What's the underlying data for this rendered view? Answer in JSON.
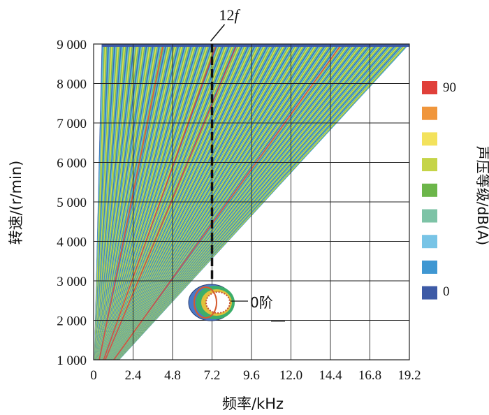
{
  "chart_data": {
    "type": "heatmap",
    "xlabel": "频率/kHz",
    "ylabel": "转速/(r/min)",
    "colorbar_label": "声压等级/dB(A)",
    "x_ticks": [
      "0",
      "2.4",
      "4.8",
      "7.2",
      "9.6",
      "12.0",
      "14.4",
      "16.8",
      "19.2"
    ],
    "x_tick_values": [
      0,
      2.4,
      4.8,
      7.2,
      9.6,
      12.0,
      14.4,
      16.8,
      19.2
    ],
    "y_ticks": [
      "1 000",
      "2 000",
      "3 000",
      "4 000",
      "5 000",
      "6 000",
      "7 000",
      "8 000",
      "9 000"
    ],
    "y_tick_values": [
      1000,
      2000,
      3000,
      4000,
      5000,
      6000,
      7000,
      8000,
      9000
    ],
    "xlim": [
      0,
      19.2
    ],
    "ylim": [
      1000,
      9000
    ],
    "grid": true,
    "colorbar": {
      "labels": [
        "90",
        "0"
      ],
      "colors": [
        "#e0403a",
        "#f0963c",
        "#f3e25c",
        "#c5d448",
        "#6cb64a",
        "#7dc3a6",
        "#78c4e6",
        "#3f97d2",
        "#3d5aa6"
      ]
    },
    "order_lines": {
      "count": 48,
      "max_frequency_at_9000": 19.2,
      "band_colors": [
        "#3d5aa6",
        "#3f97d2",
        "#78c4e6",
        "#7dc3a6",
        "#6cb64a",
        "#c5d448",
        "#f3e25c",
        "#c5d448",
        "#6cb64a",
        "#7dc3a6",
        "#3f97d2"
      ]
    },
    "annotations": {
      "order_marker": {
        "label": "12",
        "label_italic": "f",
        "x": 7.2
      },
      "mode_label": "0阶"
    }
  }
}
